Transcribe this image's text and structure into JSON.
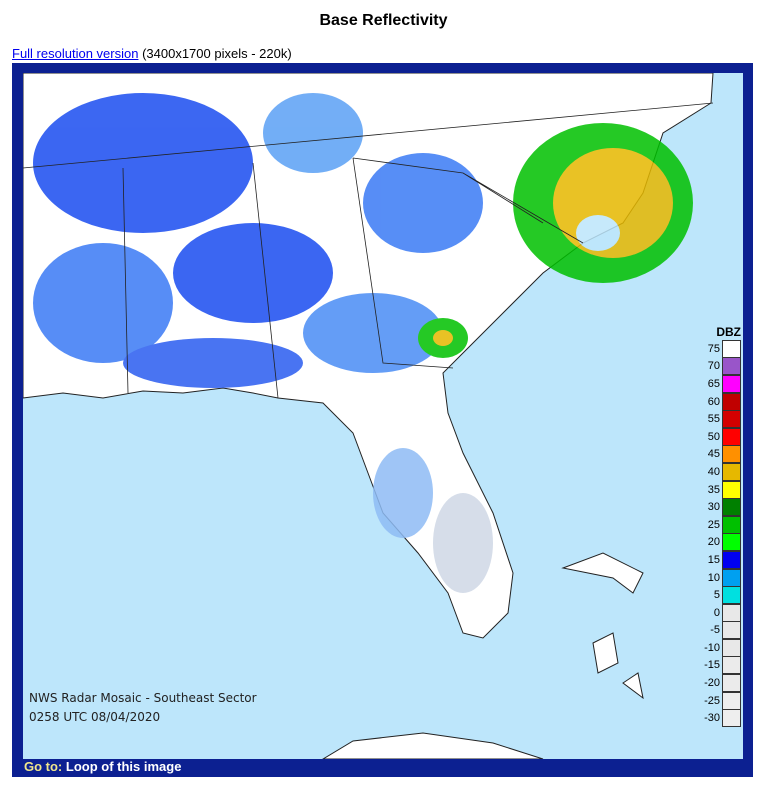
{
  "title": "Base Reflectivity",
  "resolution": {
    "link_label": "Full resolution version",
    "details": "(3400x1700 pixels - 220k)"
  },
  "map": {
    "caption_line1": "NWS Radar Mosaic - Southeast Sector",
    "caption_line2": "0258 UTC 08/04/2020",
    "ocean_color": "#bde6fb",
    "legend": {
      "title": "DBZ",
      "items": [
        {
          "value": "75",
          "color": "#ffffff"
        },
        {
          "value": "70",
          "color": "#9955c9"
        },
        {
          "value": "65",
          "color": "#ff00ff"
        },
        {
          "value": "60",
          "color": "#c00000"
        },
        {
          "value": "55",
          "color": "#d40000"
        },
        {
          "value": "50",
          "color": "#ff0000"
        },
        {
          "value": "45",
          "color": "#ff9000"
        },
        {
          "value": "40",
          "color": "#e6b800"
        },
        {
          "value": "35",
          "color": "#ffff00"
        },
        {
          "value": "30",
          "color": "#008000"
        },
        {
          "value": "25",
          "color": "#00c000"
        },
        {
          "value": "20",
          "color": "#00ff00"
        },
        {
          "value": "15",
          "color": "#0000f0"
        },
        {
          "value": "10",
          "color": "#00a0f0"
        },
        {
          "value": "5",
          "color": "#00e0e0"
        },
        {
          "value": "0",
          "color": "#e8e8e8"
        },
        {
          "value": "-5",
          "color": "#e8e8e8"
        },
        {
          "value": "-10",
          "color": "#e8e8e8"
        },
        {
          "value": "-15",
          "color": "#ebebeb"
        },
        {
          "value": "-20",
          "color": "#ebebeb"
        },
        {
          "value": "-25",
          "color": "#eeeeee"
        },
        {
          "value": "-30",
          "color": "#eeeeee"
        }
      ]
    }
  },
  "goto": {
    "label": "Go to:",
    "link": "Loop of this image"
  }
}
